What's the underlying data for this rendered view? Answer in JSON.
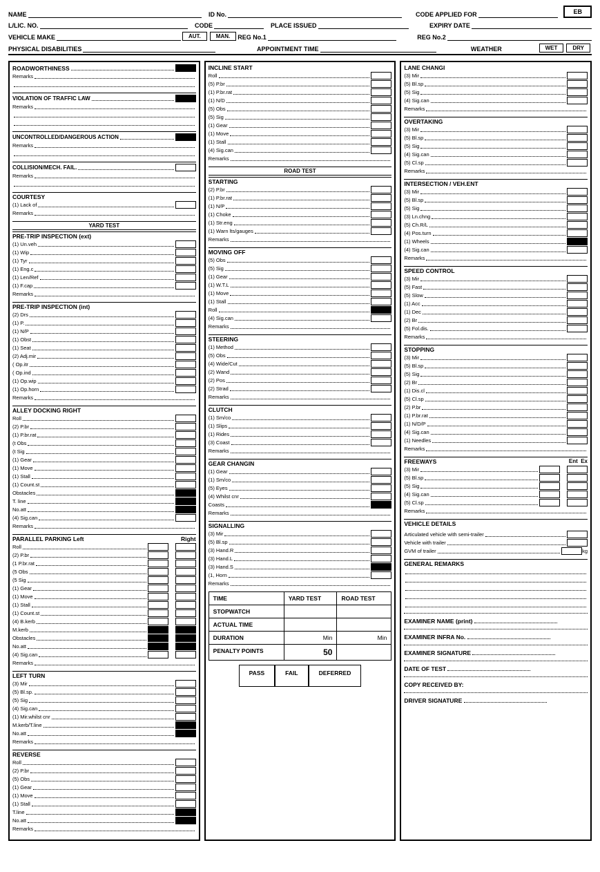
{
  "header": {
    "name_lbl": "NAME",
    "id_lbl": "ID No.",
    "code_applied_lbl": "CODE APPLIED FOR",
    "badge": "EB",
    "lic_lbl": "L/LIC. NO.",
    "code_lbl": "CODE",
    "place_issued_lbl": "PLACE ISSUED",
    "expiry_lbl": "EXPIRY DATE",
    "vehicle_make_lbl": "VEHICLE MAKE",
    "aut": "AUT.",
    "man": "MAN.",
    "reg1_lbl": "REG No.1",
    "reg2_lbl": "REG No.2",
    "phys_dis_lbl": "PHYSICAL DISABILITIES",
    "appt_time_lbl": "APPOINTMENT TIME",
    "weather_lbl": "WEATHER",
    "wet": "WET",
    "dry": "DRY"
  },
  "col1": {
    "roadworth": {
      "title": "ROADWORTHINESS",
      "remarks": "Remarks"
    },
    "violation": {
      "title": "VIOLATION OF TRAFFIC LAW",
      "remarks": "Remarks"
    },
    "uncontrolled": {
      "title": "UNCONTROLLED/DANGEROUS ACTION",
      "remarks": "Remarks"
    },
    "collision": {
      "title": "COLLISION/MECH. FAIL.",
      "remarks": "Remarks"
    },
    "courtesy": {
      "title": "COURTESY",
      "items": [
        "(1) Lack of"
      ],
      "remarks": "Remarks"
    },
    "yard_test_band": "YARD TEST",
    "ptx": {
      "title": "PRE-TRIP INSPECTION (ext)",
      "items": [
        "(1) Un.veh",
        "(1) Wip",
        "(1) Tyr",
        "(1) Eng.c",
        "(1) Len/Ref",
        "(1) F.cap"
      ],
      "remarks": "Remarks"
    },
    "pti": {
      "title": "PRE-TRIP INSPECTION (int)",
      "items": [
        "(2) Drs",
        "(1) P.",
        "(1) N/P",
        "(1) Obst",
        "(1) Seat",
        "(2) Adj.mir",
        "(  Op.itr",
        "(  Op.ind",
        "(1) Op.wip",
        "(1) Op.horn"
      ],
      "remarks": "Remarks"
    },
    "alley": {
      "title": "ALLEY DOCKING  RIGHT",
      "items": [
        "Roll",
        "(2) P.br",
        "(1) P.br.rat",
        "(t  Obs",
        "(t  Sig",
        "(1) Gear",
        "(1) Move",
        "(1) Stall",
        "(1) Count.st",
        "Obstacles",
        "T. line",
        "No.att",
        "(4) Sig.can"
      ],
      "filled": [
        false,
        false,
        false,
        false,
        false,
        false,
        false,
        false,
        false,
        true,
        true,
        true,
        false
      ],
      "remarks": "Remarks"
    },
    "parallel": {
      "title_l": "PARALLEL PARKING  Left",
      "title_r": "Right",
      "items": [
        "Roll",
        "(2) P.br",
        "(1  P.br.rat",
        "(5  Obs",
        "(5  Sig",
        "(1) Gear",
        "(1) Move",
        "(1) Stall",
        "(1) Count.st",
        "(4) B.kerb",
        "M.kerb",
        "Obstacles",
        "No.att",
        "(4) Sig.can"
      ],
      "filledL": [
        false,
        false,
        false,
        false,
        false,
        false,
        false,
        false,
        false,
        false,
        true,
        true,
        true,
        false
      ],
      "filledR": [
        false,
        false,
        false,
        false,
        false,
        false,
        false,
        false,
        false,
        false,
        true,
        true,
        true,
        false
      ],
      "remarks": "Remarks"
    },
    "leftturn": {
      "title": "LEFT TURN",
      "items": [
        "(3) Mir",
        "(5) Bl.sp.",
        "(5) Sig",
        "(4) Sig.can",
        "(1) Mir.whilst cnr",
        "M.kerb/T.line",
        "No.att"
      ],
      "filled": [
        false,
        false,
        false,
        false,
        false,
        true,
        true
      ],
      "remarks": "Remarks"
    },
    "reverse": {
      "title": "REVERSE",
      "items": [
        "Roll",
        "(2) P.br",
        "(5) Obs",
        "(1) Gear",
        "(1) Move",
        "(1) Stall",
        "T.line",
        "No.att"
      ],
      "filled": [
        false,
        false,
        false,
        false,
        false,
        false,
        true,
        true
      ],
      "remarks": "Remarks"
    }
  },
  "col2": {
    "incline": {
      "title": "INCLINE START",
      "items": [
        "Roll",
        "(5) P.br",
        "(1) P.br.rat",
        "(1) N/D",
        "(5) Obs",
        "(5) Sig",
        "(1) Gear",
        "(1) Move",
        "(1) Stall",
        "(4) Sig.can"
      ],
      "remarks": "Remarks"
    },
    "road_test_band": "ROAD TEST",
    "starting": {
      "title": "STARTING",
      "items": [
        "(2) P.br",
        "(1) P.br.rat",
        "(1) N/P",
        "(1) Choke",
        "(1) Str.eng",
        "(1) Warn lts/gauges"
      ],
      "remarks": "Remarks"
    },
    "moving": {
      "title": "MOVING OFF",
      "items": [
        "(5) Obs",
        "(5) Sig",
        "(1) Gear",
        "(1) W.T.L",
        "(1) Move",
        "(1) Stall",
        "Roll",
        "(4) Sig.can"
      ],
      "filled": [
        false,
        false,
        false,
        false,
        false,
        false,
        true,
        false
      ],
      "remarks": "Remarks"
    },
    "steering": {
      "title": "STEERING",
      "items": [
        "(1) Method",
        "(5) Obs",
        "(4) Wide/Cut",
        "(2) Wand",
        "(2) Pos",
        "(2) Strad"
      ],
      "remarks": "Remarks"
    },
    "clutch": {
      "title": "CLUTCH",
      "items": [
        "(1) Sm/co",
        "(1) Slips",
        "(1) Rides",
        "(3) Coast"
      ],
      "remarks": "Remarks"
    },
    "gear": {
      "title": "GEAR CHANGIN",
      "items": [
        "(1) Gear",
        "(1) Sm/co",
        "(5) Eyes",
        "(4) Whilst cnr",
        "Coasts"
      ],
      "filled": [
        false,
        false,
        false,
        false,
        true
      ],
      "remarks": "Remarks"
    },
    "signalling": {
      "title": "SIGNALLING",
      "items": [
        "(3) Mir",
        "(5) Bl.sp",
        "(3) Hand.R",
        "(3) Hand.L",
        "(3) Hand.S",
        "(1, Horn"
      ],
      "filled": [
        false,
        false,
        false,
        false,
        true,
        false
      ],
      "remarks": "Remarks"
    },
    "timetbl": {
      "h_time": "TIME",
      "h_yard": "YARD TEST",
      "h_road": "ROAD TEST",
      "stopwatch": "STOPWATCH",
      "actual": "ACTUAL TIME",
      "duration": "DURATION",
      "min": "Min",
      "penalty": "PENALTY POINTS",
      "fifty": "50",
      "pass": "PASS",
      "fail": "FAIL",
      "deferred": "DEFERRED"
    }
  },
  "col3": {
    "lane": {
      "title": "LANE CHANGI",
      "items": [
        "(3) Mir",
        "(5) Bl.sp",
        "(5) Sig",
        "(4) Sig.can"
      ],
      "remarks": "Remarks"
    },
    "overtaking": {
      "title": "OVERTAKING",
      "items": [
        "(3) Mir",
        "(5) Bl.sp",
        "(5) Sig",
        "(4) Sig.can",
        "(5) Cl.sp"
      ],
      "remarks": "Remarks"
    },
    "intersection": {
      "title": "INTERSECTION / VEH.ENT",
      "items": [
        "(3) Mir",
        "(5) Bl.sp",
        "(5) Sig",
        "(3) Ln.chng",
        "(5) Ch.R/L",
        "(4) Pos.turn",
        "(1) Wheels",
        "(4) Sig.can"
      ],
      "filled": [
        false,
        false,
        false,
        false,
        false,
        false,
        true,
        false
      ],
      "remarks": "Remarks"
    },
    "speed": {
      "title": "SPEED CONTROL",
      "items": [
        "(3) Mir",
        "(5) Fast",
        "(5) Slow",
        "(1) Acc",
        "(1) Dec",
        "(2) Br",
        "(5) Fol.dis."
      ],
      "remarks": "Remarks"
    },
    "stopping": {
      "title": "STOPPING",
      "items": [
        "(3) Mir",
        "(5) Bl.sp",
        "(5) Sig",
        "(2) Br",
        "(1) Dis.cl",
        "(5) Cl.sp",
        "(2) P.br",
        "(1) P.br.rat",
        "(1) N/D/P",
        "(4) Sig.can",
        "(1) Needles"
      ],
      "remarks": "Remarks"
    },
    "freeways": {
      "title": "FREEWAYS",
      "ent": "Ent",
      "ex": "Ex",
      "items": [
        "(3) Mir",
        "(5) Bl.sp",
        "(5) Sig",
        "(4) Sig.can",
        "(5) Cl.sp"
      ],
      "remarks": "Remarks"
    },
    "vehdet": {
      "title": "VEHICLE DETAILS",
      "l1": "Articulated vehicle with semi-trailer",
      "l2": "Vehicle with trailer",
      "l3": "GVM of trailer",
      "kg": "kg"
    },
    "genrem": {
      "title": "GENERAL REMARKS"
    },
    "sig": {
      "examiner_name": "EXAMINER NAME (print)",
      "infra": "EXAMINER INFRA No.",
      "exsig": "EXAMINER SIGNATURE",
      "date": "DATE OF TEST",
      "copy": "COPY RECEIVED BY:",
      "drvsig": "DRIVER SIGNATURE"
    }
  }
}
